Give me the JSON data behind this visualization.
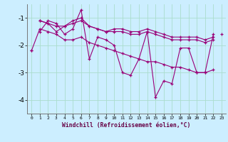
{
  "xlabel": "Windchill (Refroidissement éolien,°C)",
  "bg_color": "#cceeff",
  "grid_color": "#aaddcc",
  "line_color": "#990077",
  "series": [
    [
      null,
      -1.5,
      -1.1,
      -1.2,
      -1.6,
      -1.4,
      -0.7,
      -2.5,
      -1.7,
      -1.8,
      -2.0,
      -3.0,
      -3.1,
      -2.5,
      -1.5,
      -3.9,
      -3.3,
      -3.4,
      -2.1,
      -2.1,
      -3.0,
      -3.0,
      -1.6,
      null
    ],
    [
      null,
      -1.1,
      -1.2,
      -1.3,
      -1.3,
      -1.2,
      -1.1,
      -1.3,
      -1.4,
      -1.5,
      -1.5,
      -1.5,
      -1.6,
      -1.6,
      -1.5,
      -1.6,
      -1.7,
      -1.8,
      -1.8,
      -1.8,
      -1.8,
      -1.9,
      -1.8,
      null
    ],
    [
      null,
      -1.1,
      -1.2,
      -1.5,
      -1.3,
      -1.1,
      -1.0,
      -1.3,
      -1.4,
      -1.5,
      -1.4,
      -1.4,
      -1.5,
      -1.5,
      -1.4,
      -1.5,
      -1.6,
      -1.7,
      -1.7,
      -1.7,
      -1.7,
      -1.8,
      -1.7,
      null
    ],
    [
      -2.2,
      -1.4,
      -1.5,
      -1.6,
      -1.8,
      -1.8,
      -1.7,
      -1.9,
      -2.0,
      -2.1,
      -2.2,
      -2.3,
      -2.4,
      -2.5,
      -2.6,
      -2.6,
      -2.7,
      -2.8,
      -2.8,
      -2.9,
      -3.0,
      -3.0,
      -2.9,
      null
    ],
    [
      -2.2,
      null,
      null,
      null,
      null,
      null,
      null,
      null,
      null,
      null,
      null,
      null,
      null,
      null,
      null,
      null,
      null,
      null,
      null,
      null,
      null,
      null,
      null,
      -1.6
    ]
  ],
  "xmin": -0.5,
  "xmax": 23.5,
  "ymin": -4.5,
  "ymax": -0.5,
  "yticks": [
    -4,
    -3,
    -2,
    -1
  ],
  "xticks": [
    0,
    1,
    2,
    3,
    4,
    5,
    6,
    7,
    8,
    9,
    10,
    11,
    12,
    13,
    14,
    15,
    16,
    17,
    18,
    19,
    20,
    21,
    22,
    23
  ]
}
